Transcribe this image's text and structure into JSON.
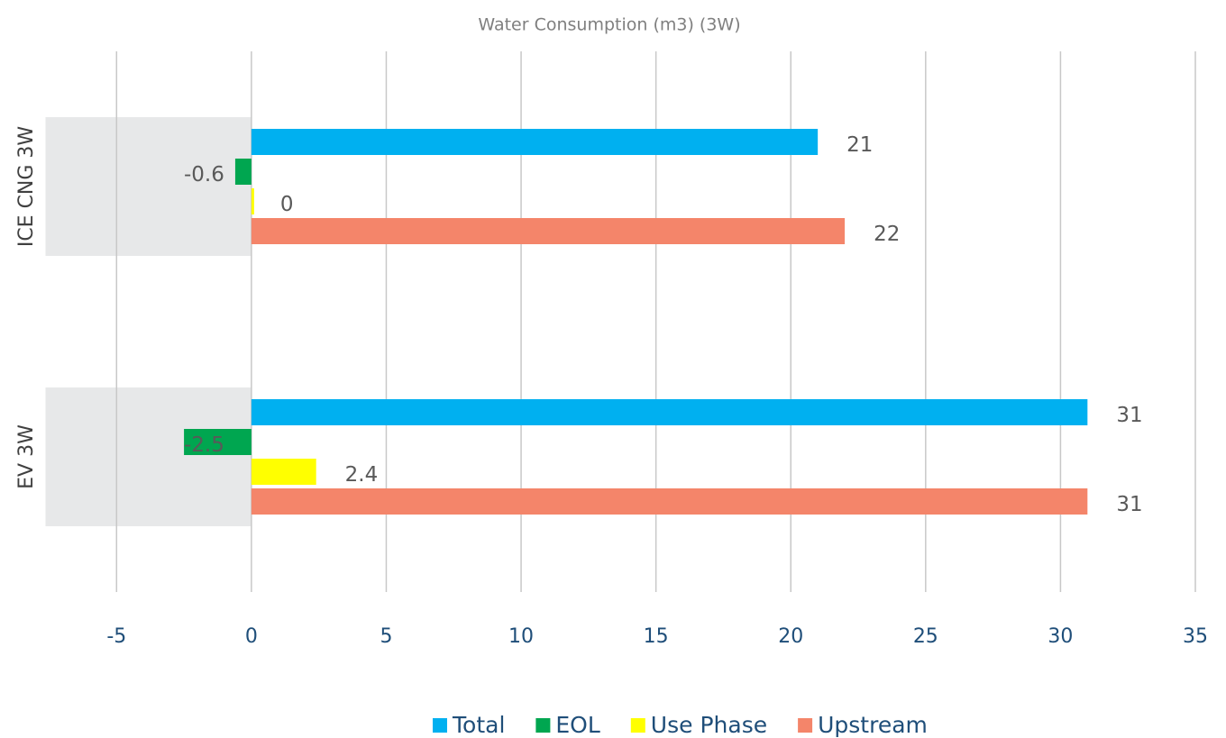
{
  "chart_data": {
    "type": "bar",
    "orientation": "horizontal",
    "title": "Water Consumption (m3) (3W)",
    "categories": [
      "ICE CNG 3W",
      "EV 3W"
    ],
    "series": [
      {
        "name": "Total",
        "color": "#00b0f0",
        "values": [
          21,
          31
        ]
      },
      {
        "name": "EOL",
        "color": "#00a650",
        "values": [
          -0.6,
          -2.5
        ]
      },
      {
        "name": "Use Phase",
        "color": "#ffff00",
        "values": [
          0,
          2.4
        ]
      },
      {
        "name": "Upstream",
        "color": "#f4856a",
        "values": [
          22,
          31
        ]
      }
    ],
    "xlim": [
      -7.5,
      35
    ],
    "xticks": [
      -5,
      0,
      5,
      10,
      15,
      20,
      25,
      30,
      35
    ],
    "grid": true,
    "legend": "bottom"
  }
}
